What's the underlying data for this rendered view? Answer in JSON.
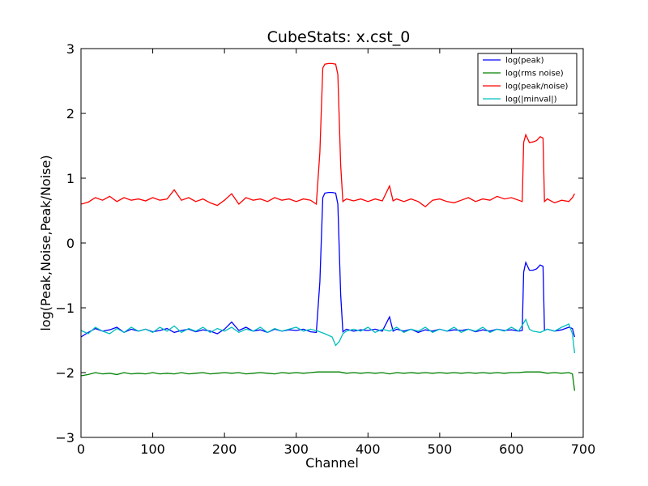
{
  "chart_data": {
    "type": "line",
    "title": "CubeStats: x.cst_0",
    "xlabel": "Channel",
    "ylabel": "log(Peak,Noise,Peak/Noise)",
    "xlim": [
      0,
      700
    ],
    "ylim": [
      -3,
      3
    ],
    "xticks": [
      0,
      100,
      200,
      300,
      400,
      500,
      600,
      700
    ],
    "yticks": [
      -3,
      -2,
      -1,
      0,
      1,
      2,
      3
    ],
    "grid": false,
    "legend_position": "top-right",
    "series": [
      {
        "name": "log(peak)",
        "color": "#0000ff",
        "points": [
          [
            0,
            -1.45
          ],
          [
            10,
            -1.38
          ],
          [
            20,
            -1.32
          ],
          [
            30,
            -1.36
          ],
          [
            40,
            -1.34
          ],
          [
            50,
            -1.3
          ],
          [
            60,
            -1.38
          ],
          [
            70,
            -1.33
          ],
          [
            80,
            -1.36
          ],
          [
            90,
            -1.33
          ],
          [
            100,
            -1.37
          ],
          [
            110,
            -1.35
          ],
          [
            120,
            -1.32
          ],
          [
            130,
            -1.38
          ],
          [
            140,
            -1.35
          ],
          [
            150,
            -1.33
          ],
          [
            160,
            -1.37
          ],
          [
            170,
            -1.34
          ],
          [
            180,
            -1.36
          ],
          [
            190,
            -1.4
          ],
          [
            200,
            -1.33
          ],
          [
            210,
            -1.22
          ],
          [
            220,
            -1.35
          ],
          [
            230,
            -1.3
          ],
          [
            240,
            -1.36
          ],
          [
            250,
            -1.34
          ],
          [
            260,
            -1.38
          ],
          [
            270,
            -1.33
          ],
          [
            280,
            -1.36
          ],
          [
            290,
            -1.34
          ],
          [
            300,
            -1.35
          ],
          [
            310,
            -1.33
          ],
          [
            320,
            -1.37
          ],
          [
            328,
            -1.38
          ],
          [
            333,
            -0.6
          ],
          [
            337,
            0.7
          ],
          [
            340,
            0.77
          ],
          [
            345,
            0.78
          ],
          [
            350,
            0.78
          ],
          [
            355,
            0.77
          ],
          [
            358,
            0.6
          ],
          [
            362,
            -0.8
          ],
          [
            365,
            -1.37
          ],
          [
            370,
            -1.33
          ],
          [
            380,
            -1.36
          ],
          [
            390,
            -1.34
          ],
          [
            400,
            -1.35
          ],
          [
            410,
            -1.33
          ],
          [
            420,
            -1.36
          ],
          [
            430,
            -1.14
          ],
          [
            435,
            -1.36
          ],
          [
            440,
            -1.33
          ],
          [
            450,
            -1.36
          ],
          [
            460,
            -1.33
          ],
          [
            470,
            -1.38
          ],
          [
            480,
            -1.34
          ],
          [
            490,
            -1.36
          ],
          [
            500,
            -1.33
          ],
          [
            510,
            -1.36
          ],
          [
            520,
            -1.34
          ],
          [
            530,
            -1.35
          ],
          [
            540,
            -1.33
          ],
          [
            550,
            -1.37
          ],
          [
            560,
            -1.34
          ],
          [
            570,
            -1.36
          ],
          [
            580,
            -1.33
          ],
          [
            590,
            -1.35
          ],
          [
            600,
            -1.34
          ],
          [
            610,
            -1.36
          ],
          [
            615,
            -1.35
          ],
          [
            617,
            -0.45
          ],
          [
            620,
            -0.3
          ],
          [
            625,
            -0.42
          ],
          [
            630,
            -0.42
          ],
          [
            635,
            -0.4
          ],
          [
            640,
            -0.34
          ],
          [
            644,
            -0.36
          ],
          [
            646,
            -1.35
          ],
          [
            650,
            -1.33
          ],
          [
            660,
            -1.36
          ],
          [
            670,
            -1.34
          ],
          [
            680,
            -1.3
          ],
          [
            685,
            -1.32
          ],
          [
            688,
            -1.45
          ]
        ]
      },
      {
        "name": "log(rms noise)",
        "color": "#008000",
        "points": [
          [
            0,
            -2.05
          ],
          [
            10,
            -2.03
          ],
          [
            20,
            -2.0
          ],
          [
            30,
            -2.02
          ],
          [
            40,
            -2.01
          ],
          [
            50,
            -2.03
          ],
          [
            60,
            -2.0
          ],
          [
            70,
            -2.02
          ],
          [
            80,
            -2.01
          ],
          [
            90,
            -2.02
          ],
          [
            100,
            -2.0
          ],
          [
            110,
            -2.02
          ],
          [
            120,
            -2.01
          ],
          [
            130,
            -2.02
          ],
          [
            140,
            -2.0
          ],
          [
            150,
            -2.02
          ],
          [
            160,
            -2.01
          ],
          [
            170,
            -2.0
          ],
          [
            180,
            -2.02
          ],
          [
            190,
            -2.01
          ],
          [
            200,
            -2.0
          ],
          [
            210,
            -2.01
          ],
          [
            220,
            -2.0
          ],
          [
            230,
            -2.02
          ],
          [
            240,
            -2.01
          ],
          [
            250,
            -2.0
          ],
          [
            260,
            -2.01
          ],
          [
            270,
            -2.02
          ],
          [
            280,
            -2.0
          ],
          [
            290,
            -2.01
          ],
          [
            300,
            -2.0
          ],
          [
            310,
            -2.01
          ],
          [
            320,
            -2.0
          ],
          [
            330,
            -1.99
          ],
          [
            340,
            -1.99
          ],
          [
            350,
            -1.99
          ],
          [
            360,
            -1.99
          ],
          [
            370,
            -2.01
          ],
          [
            380,
            -2.0
          ],
          [
            390,
            -2.01
          ],
          [
            400,
            -2.0
          ],
          [
            410,
            -2.01
          ],
          [
            420,
            -2.0
          ],
          [
            430,
            -2.02
          ],
          [
            440,
            -2.0
          ],
          [
            450,
            -2.01
          ],
          [
            460,
            -2.0
          ],
          [
            470,
            -2.01
          ],
          [
            480,
            -2.0
          ],
          [
            490,
            -2.01
          ],
          [
            500,
            -2.0
          ],
          [
            510,
            -2.01
          ],
          [
            520,
            -2.0
          ],
          [
            530,
            -2.01
          ],
          [
            540,
            -2.0
          ],
          [
            550,
            -2.01
          ],
          [
            560,
            -2.0
          ],
          [
            570,
            -2.01
          ],
          [
            580,
            -2.0
          ],
          [
            590,
            -2.01
          ],
          [
            600,
            -2.0
          ],
          [
            610,
            -2.0
          ],
          [
            620,
            -1.99
          ],
          [
            630,
            -1.99
          ],
          [
            640,
            -1.99
          ],
          [
            650,
            -2.01
          ],
          [
            660,
            -2.0
          ],
          [
            670,
            -2.01
          ],
          [
            680,
            -2.0
          ],
          [
            685,
            -2.02
          ],
          [
            688,
            -2.28
          ]
        ]
      },
      {
        "name": "log(peak/noise)",
        "color": "#ff0000",
        "points": [
          [
            0,
            0.6
          ],
          [
            10,
            0.63
          ],
          [
            20,
            0.7
          ],
          [
            30,
            0.66
          ],
          [
            40,
            0.72
          ],
          [
            50,
            0.64
          ],
          [
            60,
            0.7
          ],
          [
            70,
            0.66
          ],
          [
            80,
            0.68
          ],
          [
            90,
            0.65
          ],
          [
            100,
            0.7
          ],
          [
            110,
            0.66
          ],
          [
            120,
            0.68
          ],
          [
            130,
            0.82
          ],
          [
            140,
            0.66
          ],
          [
            150,
            0.7
          ],
          [
            160,
            0.64
          ],
          [
            170,
            0.68
          ],
          [
            180,
            0.62
          ],
          [
            190,
            0.58
          ],
          [
            200,
            0.66
          ],
          [
            210,
            0.76
          ],
          [
            220,
            0.6
          ],
          [
            230,
            0.7
          ],
          [
            240,
            0.66
          ],
          [
            250,
            0.68
          ],
          [
            260,
            0.64
          ],
          [
            270,
            0.7
          ],
          [
            280,
            0.66
          ],
          [
            290,
            0.68
          ],
          [
            300,
            0.64
          ],
          [
            310,
            0.68
          ],
          [
            320,
            0.66
          ],
          [
            328,
            0.6
          ],
          [
            333,
            1.4
          ],
          [
            337,
            2.7
          ],
          [
            340,
            2.76
          ],
          [
            345,
            2.77
          ],
          [
            350,
            2.77
          ],
          [
            355,
            2.76
          ],
          [
            358,
            2.6
          ],
          [
            362,
            1.2
          ],
          [
            365,
            0.64
          ],
          [
            370,
            0.68
          ],
          [
            380,
            0.65
          ],
          [
            390,
            0.68
          ],
          [
            400,
            0.64
          ],
          [
            410,
            0.68
          ],
          [
            420,
            0.65
          ],
          [
            430,
            0.88
          ],
          [
            435,
            0.65
          ],
          [
            440,
            0.68
          ],
          [
            450,
            0.64
          ],
          [
            460,
            0.68
          ],
          [
            470,
            0.64
          ],
          [
            480,
            0.56
          ],
          [
            490,
            0.66
          ],
          [
            500,
            0.68
          ],
          [
            510,
            0.64
          ],
          [
            520,
            0.62
          ],
          [
            530,
            0.66
          ],
          [
            540,
            0.7
          ],
          [
            550,
            0.64
          ],
          [
            560,
            0.68
          ],
          [
            570,
            0.66
          ],
          [
            580,
            0.72
          ],
          [
            590,
            0.68
          ],
          [
            600,
            0.7
          ],
          [
            610,
            0.66
          ],
          [
            615,
            0.64
          ],
          [
            617,
            1.55
          ],
          [
            620,
            1.67
          ],
          [
            625,
            1.55
          ],
          [
            630,
            1.56
          ],
          [
            635,
            1.58
          ],
          [
            640,
            1.64
          ],
          [
            644,
            1.62
          ],
          [
            646,
            0.64
          ],
          [
            650,
            0.68
          ],
          [
            660,
            0.62
          ],
          [
            670,
            0.66
          ],
          [
            680,
            0.64
          ],
          [
            685,
            0.7
          ],
          [
            688,
            0.76
          ]
        ]
      },
      {
        "name": "log(|minval|)",
        "color": "#00bfbf",
        "points": [
          [
            0,
            -1.35
          ],
          [
            10,
            -1.4
          ],
          [
            20,
            -1.3
          ],
          [
            30,
            -1.36
          ],
          [
            40,
            -1.4
          ],
          [
            50,
            -1.32
          ],
          [
            60,
            -1.38
          ],
          [
            70,
            -1.3
          ],
          [
            80,
            -1.36
          ],
          [
            90,
            -1.33
          ],
          [
            100,
            -1.38
          ],
          [
            110,
            -1.3
          ],
          [
            120,
            -1.36
          ],
          [
            130,
            -1.28
          ],
          [
            140,
            -1.38
          ],
          [
            150,
            -1.32
          ],
          [
            160,
            -1.36
          ],
          [
            170,
            -1.3
          ],
          [
            180,
            -1.38
          ],
          [
            190,
            -1.32
          ],
          [
            200,
            -1.36
          ],
          [
            210,
            -1.3
          ],
          [
            220,
            -1.38
          ],
          [
            230,
            -1.33
          ],
          [
            240,
            -1.36
          ],
          [
            250,
            -1.3
          ],
          [
            260,
            -1.38
          ],
          [
            270,
            -1.32
          ],
          [
            280,
            -1.36
          ],
          [
            290,
            -1.33
          ],
          [
            300,
            -1.3
          ],
          [
            310,
            -1.36
          ],
          [
            320,
            -1.33
          ],
          [
            330,
            -1.36
          ],
          [
            340,
            -1.4
          ],
          [
            350,
            -1.45
          ],
          [
            355,
            -1.58
          ],
          [
            360,
            -1.52
          ],
          [
            365,
            -1.4
          ],
          [
            370,
            -1.36
          ],
          [
            380,
            -1.33
          ],
          [
            390,
            -1.36
          ],
          [
            400,
            -1.3
          ],
          [
            410,
            -1.38
          ],
          [
            420,
            -1.33
          ],
          [
            430,
            -1.36
          ],
          [
            440,
            -1.3
          ],
          [
            450,
            -1.38
          ],
          [
            460,
            -1.33
          ],
          [
            470,
            -1.36
          ],
          [
            480,
            -1.3
          ],
          [
            490,
            -1.38
          ],
          [
            500,
            -1.33
          ],
          [
            510,
            -1.36
          ],
          [
            520,
            -1.3
          ],
          [
            530,
            -1.38
          ],
          [
            540,
            -1.33
          ],
          [
            550,
            -1.36
          ],
          [
            560,
            -1.3
          ],
          [
            570,
            -1.38
          ],
          [
            580,
            -1.33
          ],
          [
            590,
            -1.36
          ],
          [
            600,
            -1.3
          ],
          [
            610,
            -1.36
          ],
          [
            620,
            -1.18
          ],
          [
            625,
            -1.33
          ],
          [
            630,
            -1.36
          ],
          [
            640,
            -1.38
          ],
          [
            650,
            -1.33
          ],
          [
            660,
            -1.36
          ],
          [
            670,
            -1.3
          ],
          [
            680,
            -1.25
          ],
          [
            685,
            -1.4
          ],
          [
            688,
            -1.7
          ]
        ]
      }
    ]
  }
}
